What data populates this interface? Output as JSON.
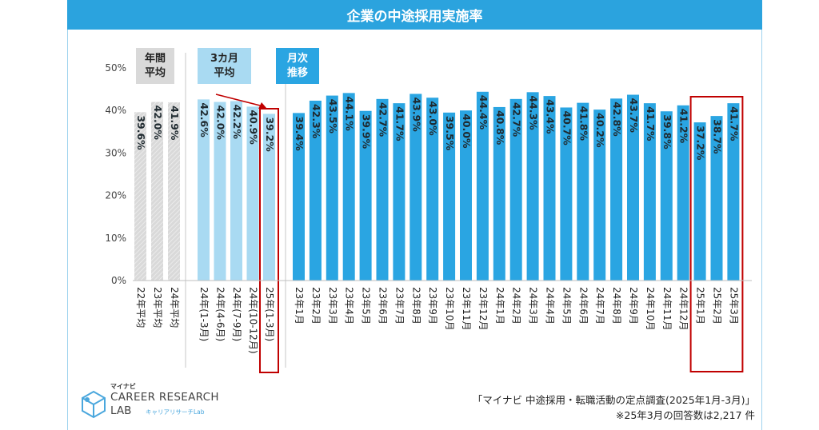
{
  "title": "企業の中途採用実施率",
  "chart_data": {
    "type": "bar",
    "ylim": [
      0,
      50
    ],
    "yticks": [
      "0%",
      "10%",
      "20%",
      "30%",
      "40%",
      "50%"
    ],
    "groups": [
      {
        "header": [
          "年間",
          "平均"
        ],
        "style": "annual",
        "categories": [
          "22年平均",
          "23年平均",
          "24年平均"
        ],
        "values": [
          39.6,
          42.0,
          41.9
        ],
        "labels": [
          "39.6%",
          "42.0%",
          "41.9%"
        ]
      },
      {
        "header": [
          "3カ月",
          "平均"
        ],
        "style": "quarterly",
        "categories": [
          "24年(1-3月)",
          "24年(4-6月)",
          "24年(7-9月)",
          "24年(10-12月)",
          "25年(1-3月)"
        ],
        "values": [
          42.6,
          42.0,
          42.2,
          40.9,
          39.2
        ],
        "labels": [
          "42.6%",
          "42.0%",
          "42.2%",
          "40.9%",
          "39.2%"
        ]
      },
      {
        "header": [
          "月次",
          "推移"
        ],
        "style": "monthly",
        "categories": [
          "23年1月",
          "23年2月",
          "23年3月",
          "23年4月",
          "23年5月",
          "23年6月",
          "23年7月",
          "23年8月",
          "23年9月",
          "23年10月",
          "23年11月",
          "23年12月",
          "24年1月",
          "24年2月",
          "24年3月",
          "24年4月",
          "24年5月",
          "24年6月",
          "24年7月",
          "24年8月",
          "24年9月",
          "24年10月",
          "24年11月",
          "24年12月",
          "25年1月",
          "25年2月",
          "25年3月"
        ],
        "values": [
          39.4,
          42.3,
          43.5,
          44.1,
          39.9,
          42.7,
          41.7,
          43.9,
          43.0,
          39.5,
          40.0,
          44.4,
          40.8,
          42.7,
          44.3,
          43.4,
          40.7,
          41.8,
          40.2,
          42.8,
          43.7,
          41.7,
          39.8,
          41.2,
          37.2,
          38.7,
          41.7
        ],
        "labels": [
          "39.4%",
          "42.3%",
          "43.5%",
          "44.1%",
          "39.9%",
          "42.7%",
          "41.7%",
          "43.9%",
          "43.0%",
          "39.5%",
          "40.0%",
          "44.4%",
          "40.8%",
          "42.7%",
          "44.3%",
          "43.4%",
          "40.7%",
          "41.8%",
          "40.2%",
          "42.8%",
          "43.7%",
          "41.7%",
          "39.8%",
          "41.2%",
          "37.2%",
          "38.7%",
          "41.7%"
        ]
      }
    ],
    "colors": {
      "annual": "#d9d9d9",
      "quarterly": "#a9daf2",
      "monthly": "#2aa5e2",
      "highlight": "#c00000",
      "header_annual": "#d9d9d9",
      "header_quarterly": "#a9daf2",
      "header_monthly": "#2aa5e2"
    }
  },
  "footer": {
    "source": "「マイナビ 中途採用・転職活動の定点調査(2025年1月-3月)」",
    "note": "※25年3月の回答数は2,217 件"
  },
  "logo": {
    "brand": "マイナビ",
    "line1": "CAREER RESEARCH",
    "line2": "LAB",
    "sub": "キャリアリサーチLab"
  }
}
